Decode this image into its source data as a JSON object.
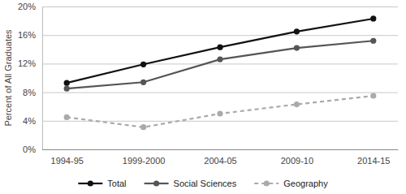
{
  "chart_data": {
    "type": "line",
    "y_label": "Percent of All Graduates",
    "categories": [
      "1994-95",
      "1999-2000",
      "2004-05",
      "2009-10",
      "2014-15"
    ],
    "series": [
      {
        "name": "Total",
        "color": "#111111",
        "values": [
          9.3,
          11.9,
          14.3,
          16.5,
          18.3
        ],
        "marker": "circle",
        "line_style": "solid"
      },
      {
        "name": "Social Sciences",
        "color": "#555555",
        "values": [
          8.5,
          9.4,
          12.6,
          14.2,
          15.2
        ],
        "marker": "circle",
        "line_style": "solid"
      },
      {
        "name": "Geography",
        "color": "#aaaaaa",
        "values": [
          4.5,
          3.1,
          5.0,
          6.3,
          7.5
        ],
        "marker": "circle",
        "line_style": "dashed"
      }
    ],
    "ylim": [
      0,
      20
    ],
    "yticks": [
      {
        "value": 0,
        "label": "0%"
      },
      {
        "value": 4,
        "label": "4%"
      },
      {
        "value": 8,
        "label": "8%"
      },
      {
        "value": 12,
        "label": "12%"
      },
      {
        "value": 16,
        "label": "16%"
      },
      {
        "value": 20,
        "label": "20%"
      }
    ],
    "grid": true,
    "legend": "bottom"
  }
}
